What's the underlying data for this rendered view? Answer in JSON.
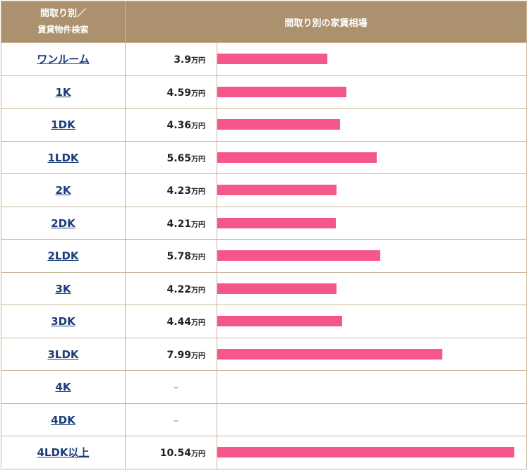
{
  "header": {
    "col1_line1": "間取り別／",
    "col1_line2": "賃貸物件検索",
    "col2": "間取り別の家賃相場"
  },
  "colors": {
    "header_bg": "#ac916f",
    "bar": "#f6578a",
    "link": "#1b3d7a",
    "border": "#c9b596"
  },
  "unit": "万円",
  "rows": [
    {
      "type": "ワンルーム",
      "price": "3.9"
    },
    {
      "type": "1K",
      "price": "4.59"
    },
    {
      "type": "1DK",
      "price": "4.36"
    },
    {
      "type": "1LDK",
      "price": "5.65"
    },
    {
      "type": "2K",
      "price": "4.23"
    },
    {
      "type": "2DK",
      "price": "4.21"
    },
    {
      "type": "2LDK",
      "price": "5.78"
    },
    {
      "type": "3K",
      "price": "4.22"
    },
    {
      "type": "3DK",
      "price": "4.44"
    },
    {
      "type": "3LDK",
      "price": "7.99"
    },
    {
      "type": "4K",
      "price": "–"
    },
    {
      "type": "4DK",
      "price": "–"
    },
    {
      "type": "4LDK以上",
      "price": "10.54"
    }
  ],
  "chart_data": {
    "type": "bar",
    "orientation": "horizontal",
    "categories": [
      "ワンルーム",
      "1K",
      "1DK",
      "1LDK",
      "2K",
      "2DK",
      "2LDK",
      "3K",
      "3DK",
      "3LDK",
      "4K",
      "4DK",
      "4LDK以上"
    ],
    "values": [
      3.9,
      4.59,
      4.36,
      5.65,
      4.23,
      4.21,
      5.78,
      4.22,
      4.44,
      7.99,
      null,
      null,
      10.54
    ],
    "title": "間取り別の家賃相場",
    "unit": "万円",
    "xlim": [
      0,
      10.54
    ]
  }
}
